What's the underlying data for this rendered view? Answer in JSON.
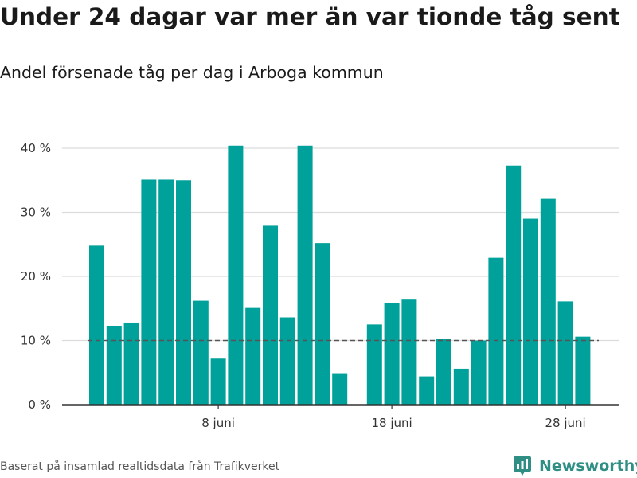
{
  "title": "Under 24 dagar var mer än var tionde tåg sent",
  "subtitle": "Andel försenade tåg per dag i Arboga kommun",
  "footer": "Baserat på insamlad realtidsdata från Trafikverket",
  "brand": {
    "name": "Newsworthy",
    "icon": "newsworthy-logo-icon",
    "color": "#2f8f84"
  },
  "chart_data": {
    "type": "bar",
    "color": "#00a19a",
    "x_tick_labels": [
      {
        "day": 8,
        "label": "8 juni"
      },
      {
        "day": 18,
        "label": "18 juni"
      },
      {
        "day": 28,
        "label": "28 juni"
      }
    ],
    "y_ticks": [
      {
        "value": 0,
        "label": "0 %"
      },
      {
        "value": 10,
        "label": "10 %"
      },
      {
        "value": 20,
        "label": "20 %"
      },
      {
        "value": 30,
        "label": "30 %"
      },
      {
        "value": 40,
        "label": "40 %"
      }
    ],
    "ylim": [
      0,
      40
    ],
    "reference_line": {
      "value": 10,
      "style": "dashed"
    },
    "grid": true,
    "days": [
      1,
      2,
      3,
      4,
      5,
      6,
      7,
      8,
      9,
      10,
      11,
      12,
      13,
      14,
      15,
      16,
      17,
      18,
      19,
      20,
      21,
      22,
      23,
      24,
      25,
      26,
      27,
      28,
      29,
      30
    ],
    "values": [
      24.8,
      12.3,
      12.8,
      35.1,
      35.1,
      35.0,
      16.2,
      7.3,
      40.4,
      15.2,
      27.9,
      13.6,
      40.4,
      25.2,
      4.9,
      null,
      12.5,
      15.9,
      16.5,
      4.4,
      10.3,
      5.6,
      10.0,
      22.9,
      37.3,
      29.0,
      32.1,
      16.1,
      10.6,
      null
    ]
  }
}
